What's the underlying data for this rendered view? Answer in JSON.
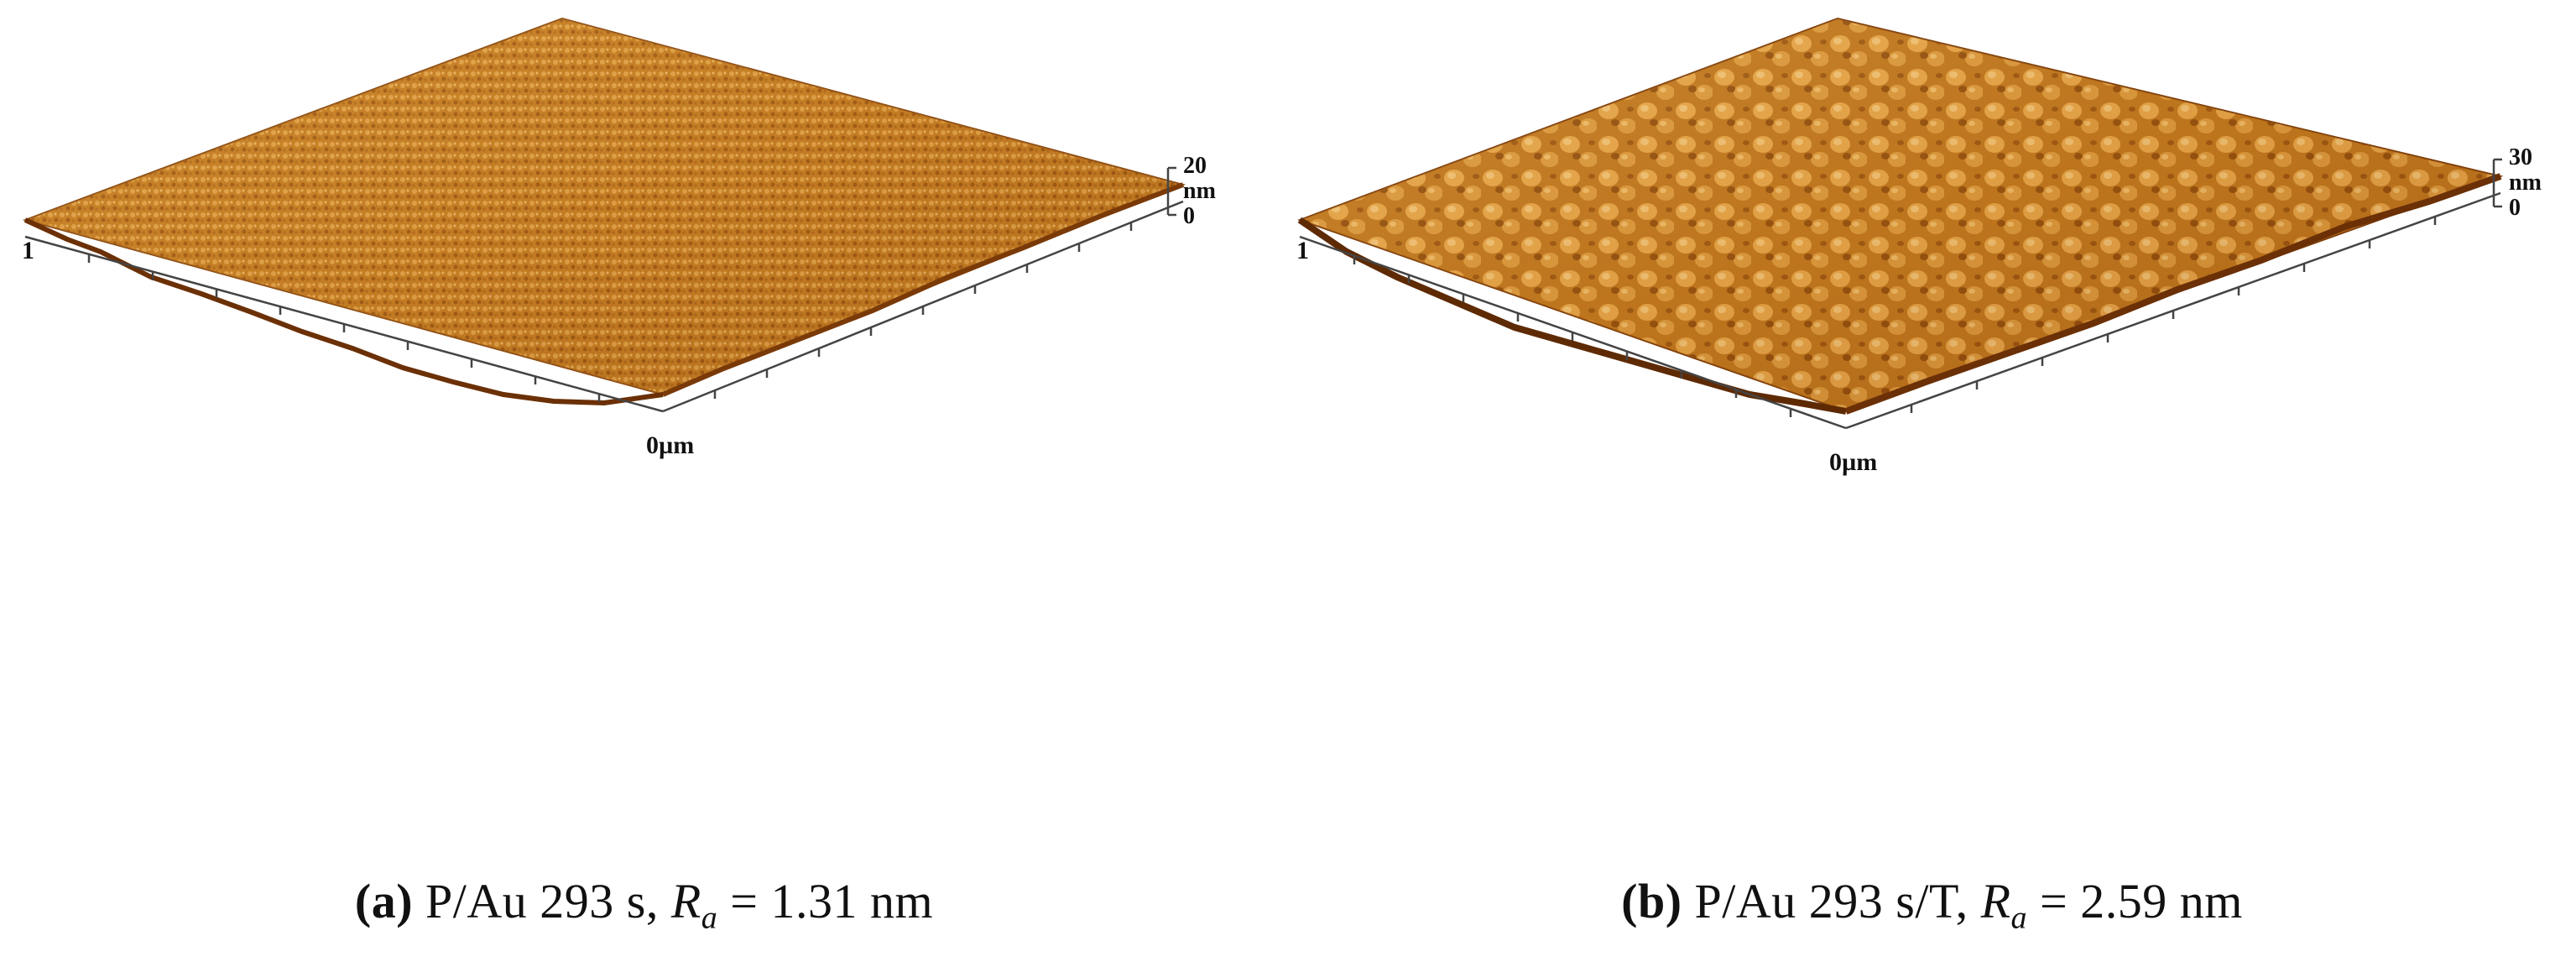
{
  "panels": [
    {
      "id": "a",
      "caption": {
        "tag": "(a)",
        "sample": "P/Au 293 s,",
        "ra_symbol": "R",
        "ra_subscript": "a",
        "ra_value": "= 1.31 nm"
      },
      "scale": {
        "max": "20",
        "unit": "nm",
        "min": "0"
      },
      "axis": {
        "corner_label": "1",
        "origin_label": "0µm"
      },
      "colors": {
        "surface_light": "#f3c56f",
        "surface_mid": "#c7801f",
        "surface_dark": "#7a3a08"
      }
    },
    {
      "id": "b",
      "caption": {
        "tag": "(b)",
        "sample": "P/Au 293 s/T,",
        "ra_symbol": "R",
        "ra_subscript": "a",
        "ra_value": "= 2.59 nm"
      },
      "scale": {
        "max": "30",
        "unit": "nm",
        "min": "0"
      },
      "axis": {
        "corner_label": "1",
        "origin_label": "0µm"
      },
      "colors": {
        "surface_light": "#f7d088",
        "surface_mid": "#c9801c",
        "surface_dark": "#6e3205"
      }
    }
  ]
}
